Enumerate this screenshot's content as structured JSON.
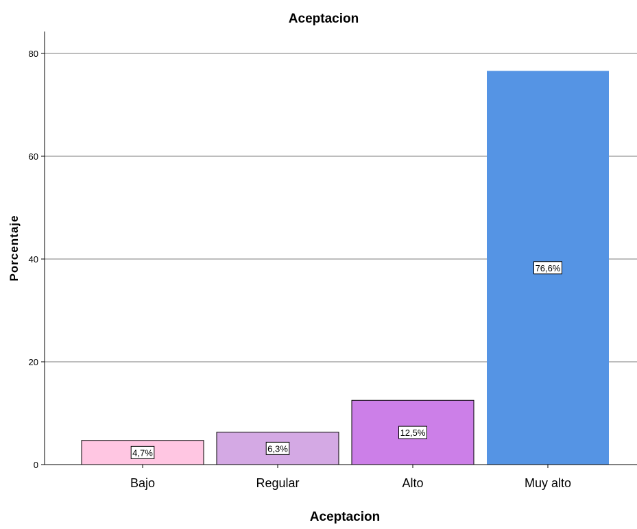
{
  "chart_data": {
    "type": "bar",
    "title": "Aceptacion",
    "xlabel": "Aceptacion",
    "ylabel": "Porcentaje",
    "categories": [
      "Bajo",
      "Regular",
      "Alto",
      "Muy alto"
    ],
    "values": [
      4.7,
      6.3,
      12.5,
      76.6
    ],
    "data_labels": [
      "4,7%",
      "6,3%",
      "12,5%",
      "76,6%"
    ],
    "colors": [
      "#ffc6e2",
      "#d4a9e4",
      "#cc7fe8",
      "#5594e4"
    ],
    "ylim": [
      0,
      80
    ],
    "yticks": [
      0,
      20,
      40,
      60,
      80
    ],
    "grid": true,
    "legend": "none"
  }
}
